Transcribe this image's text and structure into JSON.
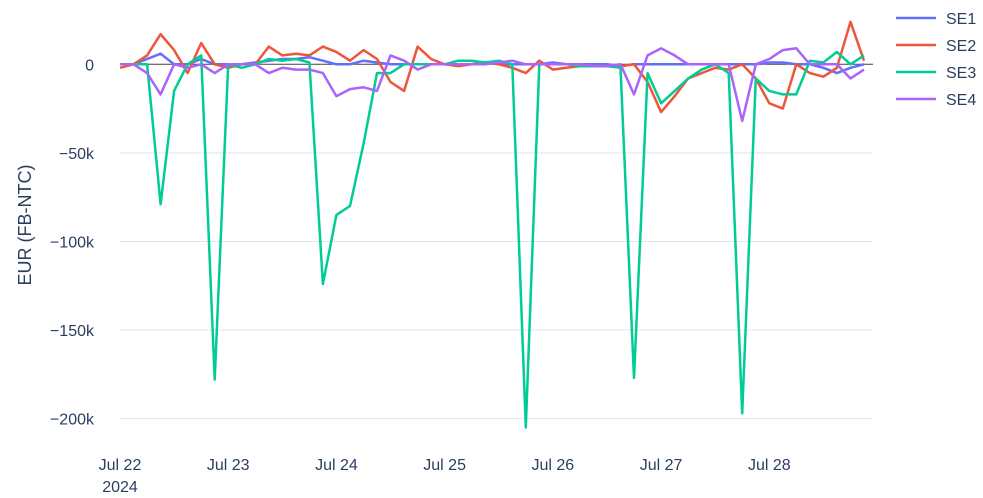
{
  "chart_data": {
    "type": "line",
    "ylabel": "EUR (FB-NTC)",
    "x": [
      "2024-07-22 00:00",
      "2024-07-22 03:00",
      "2024-07-22 06:00",
      "2024-07-22 09:00",
      "2024-07-22 12:00",
      "2024-07-22 15:00",
      "2024-07-22 18:00",
      "2024-07-22 21:00",
      "2024-07-23 00:00",
      "2024-07-23 03:00",
      "2024-07-23 06:00",
      "2024-07-23 09:00",
      "2024-07-23 12:00",
      "2024-07-23 15:00",
      "2024-07-23 18:00",
      "2024-07-23 21:00",
      "2024-07-24 00:00",
      "2024-07-24 03:00",
      "2024-07-24 06:00",
      "2024-07-24 09:00",
      "2024-07-24 12:00",
      "2024-07-24 15:00",
      "2024-07-24 18:00",
      "2024-07-24 21:00",
      "2024-07-25 00:00",
      "2024-07-25 03:00",
      "2024-07-25 06:00",
      "2024-07-25 09:00",
      "2024-07-25 12:00",
      "2024-07-25 15:00",
      "2024-07-25 18:00",
      "2024-07-25 21:00",
      "2024-07-26 00:00",
      "2024-07-26 03:00",
      "2024-07-26 06:00",
      "2024-07-26 09:00",
      "2024-07-26 12:00",
      "2024-07-26 15:00",
      "2024-07-26 18:00",
      "2024-07-26 21:00",
      "2024-07-27 00:00",
      "2024-07-27 03:00",
      "2024-07-27 06:00",
      "2024-07-27 09:00",
      "2024-07-27 12:00",
      "2024-07-27 15:00",
      "2024-07-27 18:00",
      "2024-07-27 21:00",
      "2024-07-28 00:00",
      "2024-07-28 03:00",
      "2024-07-28 06:00",
      "2024-07-28 09:00",
      "2024-07-28 12:00",
      "2024-07-28 15:00",
      "2024-07-28 18:00",
      "2024-07-28 21:00"
    ],
    "series": [
      {
        "name": "SE1",
        "color": "#636efa",
        "values": [
          0,
          0,
          3000,
          6000,
          0,
          0,
          3000,
          0,
          0,
          0,
          1000,
          2000,
          3000,
          3000,
          4000,
          2000,
          0,
          0,
          2000,
          1000,
          0,
          0,
          0,
          0,
          0,
          0,
          0,
          1000,
          0,
          0,
          0,
          0,
          1000,
          0,
          0,
          0,
          0,
          -1000,
          0,
          0,
          0,
          0,
          0,
          0,
          0,
          0,
          0,
          0,
          1000,
          1000,
          0,
          0,
          -2000,
          -5000,
          -2000,
          0
        ]
      },
      {
        "name": "SE2",
        "color": "#ef553b",
        "values": [
          -2000,
          0,
          5000,
          17000,
          8000,
          -5000,
          12000,
          0,
          -2000,
          0,
          0,
          10000,
          5000,
          6000,
          5000,
          10000,
          7000,
          2000,
          8000,
          3000,
          -10000,
          -15000,
          10000,
          3000,
          0,
          -1000,
          0,
          1000,
          0,
          -2000,
          -5000,
          2000,
          -3000,
          -2000,
          -1000,
          -1000,
          -1000,
          -1000,
          0,
          -10000,
          -27000,
          -18000,
          -8000,
          -5000,
          -2000,
          -3000,
          0,
          -8000,
          -22000,
          -25000,
          0,
          -5000,
          -7000,
          -2000,
          24000,
          2000
        ]
      },
      {
        "name": "SE3",
        "color": "#00cc96",
        "values": [
          0,
          0,
          0,
          -79000,
          -15000,
          0,
          5000,
          -178000,
          0,
          -2000,
          0,
          3000,
          2000,
          3000,
          1000,
          -124000,
          -85000,
          -80000,
          -45000,
          -5000,
          -5000,
          0,
          0,
          0,
          0,
          2000,
          2000,
          1000,
          2000,
          0,
          -205000,
          0,
          0,
          0,
          -1000,
          -1000,
          -1000,
          -2000,
          -177000,
          -5000,
          -22000,
          -15000,
          -8000,
          -3000,
          0,
          -5000,
          -197000,
          -8000,
          -15000,
          -17000,
          -17000,
          2000,
          1000,
          7000,
          0,
          5000
        ]
      },
      {
        "name": "SE4",
        "color": "#ab63fa",
        "values": [
          0,
          0,
          -5000,
          -17000,
          0,
          -2000,
          0,
          -5000,
          0,
          0,
          0,
          -5000,
          -2000,
          -3000,
          -3000,
          -5000,
          -18000,
          -14000,
          -13000,
          -15000,
          5000,
          2000,
          -3000,
          0,
          0,
          0,
          0,
          0,
          1000,
          2000,
          0,
          0,
          0,
          0,
          0,
          -1000,
          -1000,
          0,
          -17000,
          5000,
          9000,
          5000,
          0,
          0,
          0,
          0,
          -32000,
          0,
          3000,
          8000,
          9000,
          0,
          0,
          0,
          -8000,
          -3000
        ]
      }
    ],
    "xlim": [
      "2024-07-22 00:00",
      "2024-07-28 23:00"
    ],
    "xticks": [
      {
        "value": "2024-07-22 00:00",
        "label": "Jul 22\n2024"
      },
      {
        "value": "2024-07-23 00:00",
        "label": "Jul 23"
      },
      {
        "value": "2024-07-24 00:00",
        "label": "Jul 24"
      },
      {
        "value": "2024-07-25 00:00",
        "label": "Jul 25"
      },
      {
        "value": "2024-07-26 00:00",
        "label": "Jul 26"
      },
      {
        "value": "2024-07-27 00:00",
        "label": "Jul 27"
      },
      {
        "value": "2024-07-28 00:00",
        "label": "Jul 28"
      }
    ],
    "ylim": [
      -207000,
      25000
    ],
    "yticks": [
      0,
      {
        "value": -50000,
        "label": "−50k"
      },
      {
        "value": -100000,
        "label": "−100k"
      },
      {
        "value": -150000,
        "label": "−150k"
      },
      {
        "value": -200000,
        "label": "−200k"
      }
    ],
    "grid": true,
    "legend": "top-right"
  }
}
